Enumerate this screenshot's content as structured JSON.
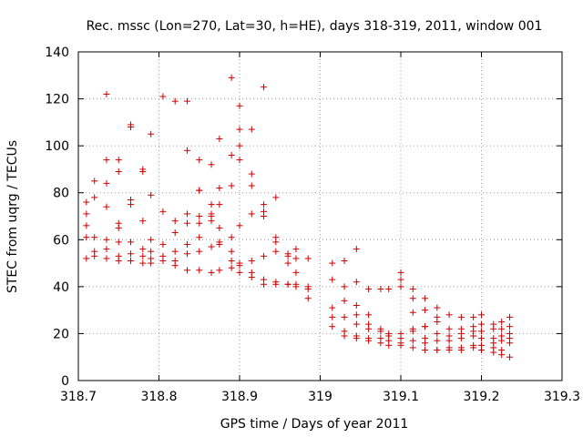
{
  "chart_data": {
    "type": "scatter",
    "title": "Rec. mssc (Lon=270, Lat=30, h=HE), days 318-319, 2011, window 001",
    "xlabel": "GPS time / Days of year 2011",
    "ylabel": "STEC from uqrg / TECUs",
    "xlim": [
      318.7,
      319.3
    ],
    "ylim": [
      0,
      140
    ],
    "xticks": [
      "318.7",
      "318.8",
      "318.9",
      "319",
      "319.1",
      "319.2",
      "319.3"
    ],
    "yticks": [
      "0",
      "20",
      "40",
      "60",
      "80",
      "100",
      "120",
      "140"
    ],
    "grid": true,
    "marker_color": "#cc0000",
    "marker": "plus",
    "points": [
      [
        318.71,
        76
      ],
      [
        318.71,
        71
      ],
      [
        318.71,
        66
      ],
      [
        318.71,
        61
      ],
      [
        318.71,
        52
      ],
      [
        318.72,
        85
      ],
      [
        318.72,
        78
      ],
      [
        318.72,
        61
      ],
      [
        318.72,
        55
      ],
      [
        318.72,
        53
      ],
      [
        318.735,
        122
      ],
      [
        318.735,
        94
      ],
      [
        318.735,
        84
      ],
      [
        318.735,
        74
      ],
      [
        318.735,
        60
      ],
      [
        318.735,
        56
      ],
      [
        318.735,
        52
      ],
      [
        318.75,
        94
      ],
      [
        318.75,
        89
      ],
      [
        318.75,
        67
      ],
      [
        318.75,
        65
      ],
      [
        318.75,
        59
      ],
      [
        318.75,
        53
      ],
      [
        318.75,
        51
      ],
      [
        318.765,
        109
      ],
      [
        318.765,
        108
      ],
      [
        318.765,
        77
      ],
      [
        318.765,
        75
      ],
      [
        318.765,
        59
      ],
      [
        318.765,
        54
      ],
      [
        318.765,
        51
      ],
      [
        318.78,
        90
      ],
      [
        318.78,
        89
      ],
      [
        318.78,
        68
      ],
      [
        318.78,
        56
      ],
      [
        318.78,
        53
      ],
      [
        318.78,
        50
      ],
      [
        318.79,
        105
      ],
      [
        318.79,
        79
      ],
      [
        318.79,
        60
      ],
      [
        318.79,
        55
      ],
      [
        318.79,
        52
      ],
      [
        318.79,
        50
      ],
      [
        318.805,
        121
      ],
      [
        318.805,
        72
      ],
      [
        318.805,
        58
      ],
      [
        318.805,
        53
      ],
      [
        318.805,
        51
      ],
      [
        318.82,
        119
      ],
      [
        318.82,
        68
      ],
      [
        318.82,
        63
      ],
      [
        318.82,
        55
      ],
      [
        318.82,
        51
      ],
      [
        318.82,
        49
      ],
      [
        318.835,
        119
      ],
      [
        318.835,
        98
      ],
      [
        318.835,
        71
      ],
      [
        318.835,
        67
      ],
      [
        318.835,
        58
      ],
      [
        318.835,
        54
      ],
      [
        318.835,
        47
      ],
      [
        318.85,
        94
      ],
      [
        318.85,
        81
      ],
      [
        318.85,
        81
      ],
      [
        318.85,
        70
      ],
      [
        318.85,
        67
      ],
      [
        318.85,
        61
      ],
      [
        318.85,
        55
      ],
      [
        318.85,
        47
      ],
      [
        318.865,
        92
      ],
      [
        318.865,
        75
      ],
      [
        318.865,
        71
      ],
      [
        318.865,
        70
      ],
      [
        318.865,
        68
      ],
      [
        318.865,
        57
      ],
      [
        318.865,
        46
      ],
      [
        318.875,
        103
      ],
      [
        318.875,
        82
      ],
      [
        318.875,
        75
      ],
      [
        318.875,
        65
      ],
      [
        318.875,
        59
      ],
      [
        318.875,
        58
      ],
      [
        318.875,
        47
      ],
      [
        318.89,
        129
      ],
      [
        318.89,
        96
      ],
      [
        318.89,
        83
      ],
      [
        318.89,
        61
      ],
      [
        318.89,
        55
      ],
      [
        318.89,
        51
      ],
      [
        318.89,
        48
      ],
      [
        318.9,
        117
      ],
      [
        318.9,
        107
      ],
      [
        318.9,
        100
      ],
      [
        318.9,
        94
      ],
      [
        318.9,
        66
      ],
      [
        318.9,
        50
      ],
      [
        318.9,
        49
      ],
      [
        318.9,
        46
      ],
      [
        318.915,
        107
      ],
      [
        318.915,
        88
      ],
      [
        318.915,
        83
      ],
      [
        318.915,
        71
      ],
      [
        318.915,
        51
      ],
      [
        318.915,
        46
      ],
      [
        318.915,
        44
      ],
      [
        318.93,
        125
      ],
      [
        318.93,
        75
      ],
      [
        318.93,
        72
      ],
      [
        318.93,
        70
      ],
      [
        318.93,
        53
      ],
      [
        318.93,
        43
      ],
      [
        318.93,
        41
      ],
      [
        318.945,
        78
      ],
      [
        318.945,
        61
      ],
      [
        318.945,
        59
      ],
      [
        318.945,
        55
      ],
      [
        318.945,
        42
      ],
      [
        318.945,
        41
      ],
      [
        318.96,
        54
      ],
      [
        318.96,
        53
      ],
      [
        318.96,
        50
      ],
      [
        318.96,
        41
      ],
      [
        318.96,
        41
      ],
      [
        318.97,
        56
      ],
      [
        318.97,
        52
      ],
      [
        318.97,
        46
      ],
      [
        318.97,
        41
      ],
      [
        318.97,
        40
      ],
      [
        318.985,
        52
      ],
      [
        318.985,
        40
      ],
      [
        318.985,
        39
      ],
      [
        318.985,
        35
      ],
      [
        319.015,
        50
      ],
      [
        319.015,
        43
      ],
      [
        319.015,
        31
      ],
      [
        319.015,
        27
      ],
      [
        319.015,
        23
      ],
      [
        319.03,
        51
      ],
      [
        319.03,
        40
      ],
      [
        319.03,
        34
      ],
      [
        319.03,
        27
      ],
      [
        319.03,
        21
      ],
      [
        319.03,
        19
      ],
      [
        319.045,
        56
      ],
      [
        319.045,
        42
      ],
      [
        319.045,
        32
      ],
      [
        319.045,
        28
      ],
      [
        319.045,
        24
      ],
      [
        319.045,
        19
      ],
      [
        319.045,
        18
      ],
      [
        319.06,
        39
      ],
      [
        319.06,
        28
      ],
      [
        319.06,
        24
      ],
      [
        319.06,
        22
      ],
      [
        319.06,
        18
      ],
      [
        319.06,
        17
      ],
      [
        319.075,
        39
      ],
      [
        319.075,
        22
      ],
      [
        319.075,
        21
      ],
      [
        319.075,
        18
      ],
      [
        319.075,
        16
      ],
      [
        319.085,
        39
      ],
      [
        319.085,
        20
      ],
      [
        319.085,
        19
      ],
      [
        319.085,
        17
      ],
      [
        319.085,
        15
      ],
      [
        319.1,
        46
      ],
      [
        319.1,
        43
      ],
      [
        319.1,
        40
      ],
      [
        319.1,
        20
      ],
      [
        319.1,
        18
      ],
      [
        319.1,
        16
      ],
      [
        319.1,
        15
      ],
      [
        319.115,
        39
      ],
      [
        319.115,
        35
      ],
      [
        319.115,
        29
      ],
      [
        319.115,
        22
      ],
      [
        319.115,
        21
      ],
      [
        319.115,
        17
      ],
      [
        319.115,
        14
      ],
      [
        319.13,
        35
      ],
      [
        319.13,
        30
      ],
      [
        319.13,
        23
      ],
      [
        319.13,
        23
      ],
      [
        319.13,
        18
      ],
      [
        319.13,
        16
      ],
      [
        319.13,
        13
      ],
      [
        319.145,
        31
      ],
      [
        319.145,
        27
      ],
      [
        319.145,
        25
      ],
      [
        319.145,
        20
      ],
      [
        319.145,
        17
      ],
      [
        319.145,
        13
      ],
      [
        319.145,
        13
      ],
      [
        319.16,
        28
      ],
      [
        319.16,
        22
      ],
      [
        319.16,
        19
      ],
      [
        319.16,
        17
      ],
      [
        319.16,
        14
      ],
      [
        319.16,
        13
      ],
      [
        319.175,
        27
      ],
      [
        319.175,
        22
      ],
      [
        319.175,
        20
      ],
      [
        319.175,
        18
      ],
      [
        319.175,
        14
      ],
      [
        319.175,
        13
      ],
      [
        319.19,
        27
      ],
      [
        319.19,
        23
      ],
      [
        319.19,
        21
      ],
      [
        319.19,
        19
      ],
      [
        319.19,
        15
      ],
      [
        319.19,
        14
      ],
      [
        319.2,
        28
      ],
      [
        319.2,
        24
      ],
      [
        319.2,
        21
      ],
      [
        319.2,
        18
      ],
      [
        319.2,
        15
      ],
      [
        319.2,
        13
      ],
      [
        319.215,
        24
      ],
      [
        319.215,
        22
      ],
      [
        319.215,
        18
      ],
      [
        319.215,
        16
      ],
      [
        319.215,
        14
      ],
      [
        319.215,
        12
      ],
      [
        319.225,
        25
      ],
      [
        319.225,
        22
      ],
      [
        319.225,
        19
      ],
      [
        319.225,
        17
      ],
      [
        319.225,
        13
      ],
      [
        319.225,
        11
      ],
      [
        319.235,
        27
      ],
      [
        319.235,
        23
      ],
      [
        319.235,
        20
      ],
      [
        319.235,
        18
      ],
      [
        319.235,
        16
      ],
      [
        319.235,
        10
      ]
    ]
  }
}
